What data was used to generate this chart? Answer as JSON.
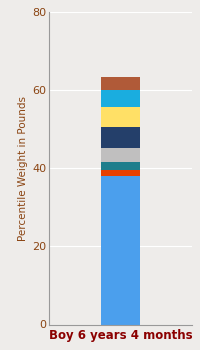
{
  "categories": [
    "Boy 6 years 4 months"
  ],
  "segments": [
    {
      "value": 38.0,
      "color": "#4B9FED"
    },
    {
      "value": 1.5,
      "color": "#E84000"
    },
    {
      "value": 2.2,
      "color": "#1E7E8C"
    },
    {
      "value": 3.5,
      "color": "#C0BFBF"
    },
    {
      "value": 5.5,
      "color": "#243F6A"
    },
    {
      "value": 5.0,
      "color": "#FFE066"
    },
    {
      "value": 4.5,
      "color": "#1AADDF"
    },
    {
      "value": 3.3,
      "color": "#B05A38"
    }
  ],
  "ylabel": "Percentile Weight in Pounds",
  "ylim": [
    0,
    80
  ],
  "yticks": [
    0,
    20,
    40,
    60,
    80
  ],
  "background_color": "#EEECEA",
  "ylabel_fontsize": 7.5,
  "tick_fontsize": 8,
  "xlabel_fontsize": 8.5,
  "xlabel_color": "#8B0000",
  "ylabel_color": "#8B4513",
  "tick_color": "#8B4513",
  "bar_width": 0.28,
  "grid_color": "#FFFFFF"
}
